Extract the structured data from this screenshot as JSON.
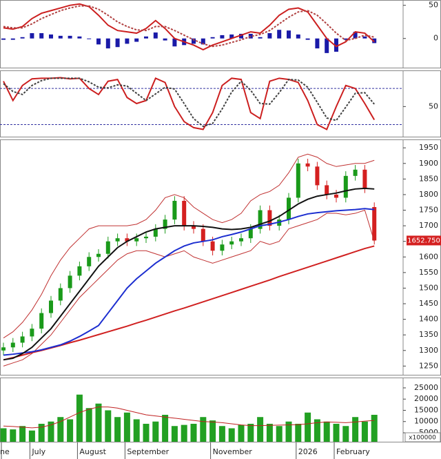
{
  "chart_data": [
    {
      "type": "indicator",
      "ylim": [
        -44,
        58
      ],
      "yticks": [
        0,
        50
      ],
      "series": [
        {
          "name": "histogram",
          "style": "bar",
          "color": "#1a1aa8",
          "values": [
            -2,
            -2,
            2,
            8,
            8,
            6,
            4,
            4,
            3,
            -1,
            -9,
            -15,
            -13,
            -8,
            -5,
            3,
            9,
            -3,
            -12,
            -10,
            -8,
            -9,
            2,
            5,
            6,
            7,
            7,
            2,
            8,
            13,
            12,
            6,
            -2,
            -15,
            -22,
            -20,
            -2,
            10,
            3,
            -7
          ]
        },
        {
          "name": "macd",
          "style": "solid",
          "color": "#cc1f1f",
          "values": [
            16,
            14,
            18,
            30,
            38,
            42,
            46,
            50,
            52,
            48,
            35,
            20,
            12,
            10,
            8,
            15,
            27,
            15,
            0,
            -5,
            -10,
            -17,
            -10,
            -5,
            0,
            5,
            10,
            8,
            20,
            35,
            44,
            46,
            40,
            20,
            0,
            -12,
            -5,
            10,
            8,
            -5
          ]
        },
        {
          "name": "signal",
          "style": "dashed",
          "color": "#b04040",
          "values": [
            18,
            16,
            16,
            22,
            30,
            36,
            42,
            46,
            49,
            49,
            44,
            35,
            25,
            18,
            13,
            12,
            18,
            18,
            12,
            5,
            -2,
            -8,
            -12,
            -10,
            -6,
            -2,
            3,
            6,
            12,
            22,
            32,
            40,
            42,
            35,
            22,
            8,
            -3,
            0,
            5,
            2
          ]
        }
      ]
    },
    {
      "type": "indicator",
      "ylim": [
        0,
        110
      ],
      "yticks": [
        50
      ],
      "levels": [
        80,
        20
      ],
      "series": [
        {
          "name": "k",
          "style": "solid",
          "color": "#cc1f1f",
          "values": [
            92,
            60,
            85,
            96,
            97,
            97,
            98,
            96,
            97,
            80,
            70,
            92,
            95,
            65,
            55,
            60,
            97,
            90,
            50,
            25,
            15,
            12,
            40,
            85,
            97,
            95,
            40,
            30,
            92,
            97,
            95,
            90,
            60,
            20,
            12,
            50,
            85,
            80,
            55,
            28
          ]
        },
        {
          "name": "d",
          "style": "dashed",
          "color": "#404040",
          "values": [
            88,
            75,
            70,
            85,
            93,
            97,
            97,
            97,
            97,
            91,
            82,
            81,
            86,
            84,
            72,
            60,
            71,
            82,
            79,
            55,
            30,
            17,
            22,
            46,
            74,
            92,
            77,
            55,
            54,
            73,
            95,
            94,
            82,
            57,
            31,
            27,
            49,
            72,
            73,
            54
          ]
        }
      ]
    },
    {
      "type": "candlestick",
      "ylim": [
        1222,
        1977
      ],
      "yticks": [
        1250,
        1300,
        1350,
        1400,
        1450,
        1500,
        1550,
        1600,
        1650,
        1700,
        1750,
        1800,
        1850,
        1900,
        1950
      ],
      "up_color": "#1a9a1a",
      "down_color": "#d42020",
      "close_label": "1652.750",
      "open": [
        1300,
        1310,
        1325,
        1345,
        1370,
        1420,
        1460,
        1500,
        1540,
        1570,
        1600,
        1610,
        1650,
        1660,
        1650,
        1660,
        1665,
        1690,
        1720,
        1780,
        1700,
        1690,
        1650,
        1620,
        1640,
        1650,
        1660,
        1690,
        1750,
        1700,
        1720,
        1790,
        1900,
        1890,
        1830,
        1800,
        1790,
        1860,
        1880,
        1760
      ],
      "high": [
        1325,
        1340,
        1360,
        1385,
        1435,
        1475,
        1515,
        1555,
        1585,
        1615,
        1625,
        1665,
        1675,
        1675,
        1675,
        1680,
        1705,
        1735,
        1795,
        1795,
        1715,
        1705,
        1665,
        1655,
        1665,
        1675,
        1705,
        1765,
        1765,
        1735,
        1805,
        1915,
        1915,
        1905,
        1845,
        1815,
        1875,
        1895,
        1895,
        1775
      ],
      "low": [
        1285,
        1295,
        1310,
        1330,
        1355,
        1405,
        1445,
        1485,
        1525,
        1555,
        1585,
        1595,
        1635,
        1635,
        1635,
        1645,
        1650,
        1675,
        1705,
        1685,
        1675,
        1635,
        1605,
        1605,
        1625,
        1635,
        1645,
        1675,
        1685,
        1685,
        1705,
        1775,
        1875,
        1815,
        1785,
        1775,
        1775,
        1845,
        1805,
        1640
      ],
      "close": [
        1310,
        1325,
        1345,
        1370,
        1420,
        1460,
        1500,
        1540,
        1570,
        1600,
        1610,
        1650,
        1660,
        1650,
        1660,
        1665,
        1690,
        1720,
        1780,
        1700,
        1690,
        1650,
        1620,
        1640,
        1650,
        1660,
        1690,
        1750,
        1700,
        1720,
        1790,
        1900,
        1890,
        1830,
        1800,
        1790,
        1860,
        1880,
        1820,
        1652.75
      ],
      "series": [
        {
          "name": "bb-upper",
          "style": "thin",
          "color": "#c03030",
          "values": [
            1340,
            1360,
            1390,
            1430,
            1480,
            1540,
            1590,
            1630,
            1660,
            1690,
            1700,
            1700,
            1700,
            1700,
            1705,
            1720,
            1750,
            1790,
            1800,
            1790,
            1760,
            1740,
            1720,
            1710,
            1720,
            1740,
            1780,
            1800,
            1810,
            1830,
            1870,
            1920,
            1930,
            1920,
            1900,
            1890,
            1895,
            1900,
            1900,
            1910
          ]
        },
        {
          "name": "bb-lower",
          "style": "thin",
          "color": "#c03030",
          "values": [
            1250,
            1260,
            1270,
            1290,
            1320,
            1350,
            1390,
            1430,
            1470,
            1500,
            1530,
            1560,
            1590,
            1610,
            1620,
            1620,
            1610,
            1600,
            1610,
            1620,
            1600,
            1590,
            1580,
            1590,
            1600,
            1610,
            1620,
            1650,
            1640,
            1650,
            1690,
            1700,
            1710,
            1720,
            1740,
            1740,
            1735,
            1740,
            1750,
            1650
          ]
        },
        {
          "name": "ma-long",
          "style": "solid",
          "color": "#d02020",
          "values": [
            1270,
            1277,
            1285,
            1293,
            1300,
            1308,
            1316,
            1325,
            1333,
            1342,
            1351,
            1360,
            1369,
            1378,
            1388,
            1397,
            1407,
            1417,
            1427,
            1436,
            1446,
            1456,
            1466,
            1476,
            1486,
            1496,
            1506,
            1516,
            1526,
            1537,
            1547,
            1557,
            1567,
            1577,
            1587,
            1597,
            1607,
            1617,
            1627,
            1635
          ]
        },
        {
          "name": "ma-mid",
          "style": "solid",
          "color": "#1c2ed0",
          "values": [
            1285,
            1288,
            1292,
            1296,
            1302,
            1310,
            1318,
            1330,
            1345,
            1362,
            1380,
            1420,
            1460,
            1500,
            1530,
            1555,
            1580,
            1600,
            1620,
            1635,
            1645,
            1650,
            1655,
            1665,
            1672,
            1680,
            1690,
            1700,
            1705,
            1712,
            1720,
            1730,
            1738,
            1742,
            1745,
            1748,
            1750,
            1752,
            1755,
            1752
          ]
        },
        {
          "name": "ma-short",
          "style": "solid",
          "color": "#111111",
          "values": [
            1270,
            1275,
            1290,
            1310,
            1340,
            1370,
            1410,
            1450,
            1490,
            1530,
            1570,
            1600,
            1630,
            1650,
            1665,
            1680,
            1690,
            1695,
            1700,
            1700,
            1700,
            1698,
            1695,
            1690,
            1688,
            1690,
            1695,
            1705,
            1715,
            1730,
            1750,
            1770,
            1785,
            1795,
            1800,
            1805,
            1812,
            1818,
            1820,
            1818
          ]
        }
      ]
    },
    {
      "type": "volume",
      "ylim": [
        1000,
        29600
      ],
      "yticks": [
        5000,
        10000,
        15000,
        20000,
        25000
      ],
      "unit": "x100000",
      "categories": [
        "ne",
        null,
        null,
        "July",
        null,
        null,
        null,
        null,
        "August",
        null,
        null,
        null,
        null,
        "September",
        null,
        null,
        null,
        null,
        null,
        null,
        null,
        null,
        "November",
        null,
        null,
        null,
        null,
        null,
        null,
        null,
        null,
        "2026",
        null,
        null,
        null,
        "February",
        null,
        null,
        null,
        null
      ],
      "series": [
        {
          "name": "volume",
          "style": "bar",
          "color": "#22a022",
          "values": [
            7000,
            6500,
            8000,
            6000,
            9000,
            10000,
            12000,
            11000,
            22000,
            16000,
            18000,
            15000,
            12000,
            14000,
            11000,
            9000,
            10000,
            13000,
            8000,
            8500,
            9000,
            12000,
            10500,
            8000,
            7000,
            8500,
            9000,
            12000,
            9000,
            8000,
            10000,
            9000,
            14000,
            11000,
            10000,
            9000,
            8000,
            12000,
            10000,
            13000
          ]
        },
        {
          "name": "volume-ma",
          "style": "thin",
          "color": "#c02020",
          "values": [
            8000,
            7800,
            7500,
            7200,
            7500,
            8500,
            10000,
            12000,
            14000,
            15500,
            16500,
            16500,
            16000,
            15000,
            14000,
            13000,
            12500,
            12000,
            11500,
            11000,
            10500,
            10000,
            9800,
            9500,
            9000,
            8500,
            8200,
            8200,
            8300,
            8400,
            8500,
            8600,
            9000,
            9500,
            9800,
            9700,
            9500,
            9800,
            10200,
            10500
          ]
        }
      ]
    }
  ]
}
